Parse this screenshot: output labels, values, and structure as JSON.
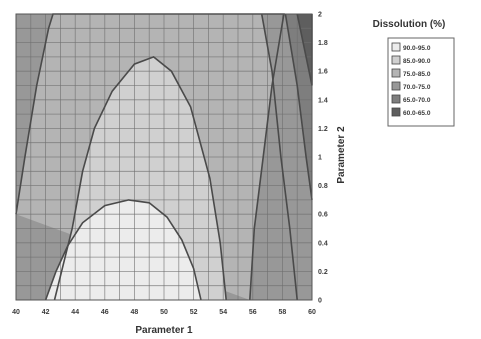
{
  "chart_data": {
    "type": "contour",
    "xlabel": "Parameter 1",
    "ylabel": "Parameter 2",
    "x_ticks": [
      "40",
      "42",
      "44",
      "46",
      "48",
      "50",
      "52",
      "54",
      "56",
      "58",
      "60"
    ],
    "y_ticks": [
      "0",
      "0.2",
      "0.4",
      "0.6",
      "0.8",
      "1",
      "1.2",
      "1.4",
      "1.6",
      "1.8",
      "2"
    ],
    "xlim": [
      40,
      60
    ],
    "ylim": [
      0,
      2
    ],
    "grid": true,
    "legend": {
      "title": "Dissolution (%)",
      "placement": "right",
      "entries": [
        {
          "label": "90.0-95.0",
          "color": "#ececec"
        },
        {
          "label": "85.0-90.0",
          "color": "#d0d0d0"
        },
        {
          "label": "75.0-85.0",
          "color": "#b4b4b4"
        },
        {
          "label": "70.0-75.0",
          "color": "#989898"
        },
        {
          "label": "65.0-70.0",
          "color": "#7e7e7e"
        },
        {
          "label": "60.0-65.0",
          "color": "#5e5e5e"
        }
      ]
    },
    "contour_boundaries": [
      {
        "name": "inner-region",
        "fill": "#ececec",
        "points": [
          [
            42.0,
            0
          ],
          [
            42.7,
            0.2
          ],
          [
            43.5,
            0.38
          ],
          [
            44.5,
            0.54
          ],
          [
            46.0,
            0.66
          ],
          [
            47.6,
            0.7
          ],
          [
            49.0,
            0.68
          ],
          [
            50.2,
            0.58
          ],
          [
            51.2,
            0.42
          ],
          [
            52.0,
            0.22
          ],
          [
            52.5,
            0
          ]
        ]
      },
      {
        "name": "second-region",
        "fill": "#d0d0d0",
        "points": [
          [
            42.6,
            0
          ],
          [
            43.8,
            0.5
          ],
          [
            44.5,
            0.9
          ],
          [
            45.3,
            1.2
          ],
          [
            46.5,
            1.46
          ],
          [
            48.0,
            1.65
          ],
          [
            49.3,
            1.7
          ],
          [
            50.5,
            1.6
          ],
          [
            51.8,
            1.35
          ],
          [
            53.1,
            0.85
          ],
          [
            53.8,
            0.4
          ],
          [
            54.2,
            0
          ]
        ]
      },
      {
        "name": "third-region",
        "fill": "#b4b4b4",
        "points": [
          [
            40.0,
            0.6
          ],
          [
            40.6,
            1.0
          ],
          [
            41.4,
            1.5
          ],
          [
            42.2,
            1.9
          ],
          [
            42.5,
            2.0
          ],
          [
            58.1,
            2.0
          ],
          [
            57.3,
            1.5
          ],
          [
            56.7,
            1.0
          ],
          [
            56.1,
            0.5
          ],
          [
            55.8,
            0
          ]
        ]
      },
      {
        "name": "fourth-region",
        "fill": "#989898",
        "points": [
          [
            56.6,
            2.0
          ],
          [
            57.3,
            1.6
          ],
          [
            57.9,
            1.0
          ],
          [
            58.5,
            0.5
          ],
          [
            59.0,
            0
          ]
        ]
      },
      {
        "name": "fifth-region",
        "fill": "#7e7e7e",
        "points": [
          [
            58.2,
            2.0
          ],
          [
            59.0,
            1.5
          ],
          [
            59.6,
            1.0
          ],
          [
            60.0,
            0.7
          ]
        ]
      },
      {
        "name": "corner-region",
        "fill": "#5e5e5e",
        "points": [
          [
            59.0,
            2.0
          ],
          [
            60.0,
            1.5
          ],
          [
            60.0,
            2.0
          ]
        ]
      }
    ],
    "background_fill": "#989898"
  }
}
